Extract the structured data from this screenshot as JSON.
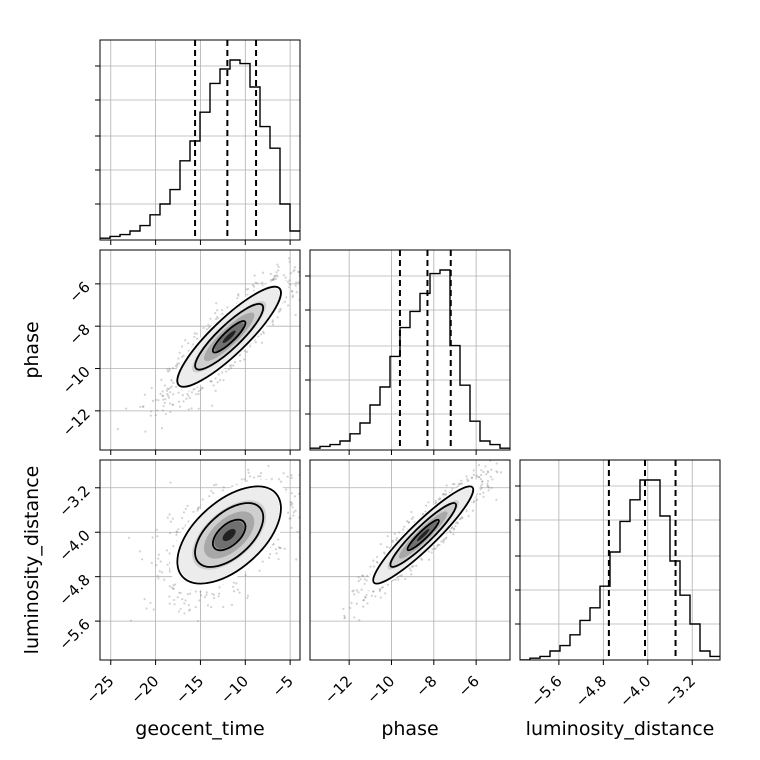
{
  "chart_data": {
    "type": "corner",
    "parameters": [
      "geocent_time",
      "phase",
      "luminosity_distance"
    ],
    "axis_labels": {
      "geocent_time": "geocent_time",
      "phase": "phase",
      "luminosity_distance": "luminosity_distance"
    },
    "ranges": {
      "geocent_time": [
        -26.2,
        -3.9
      ],
      "phase": [
        -13.85,
        -4.4
      ],
      "luminosity_distance": [
        -6.3,
        -2.7
      ]
    },
    "ticks": {
      "geocent_time": [
        -25,
        -20,
        -15,
        -10,
        -5
      ],
      "phase": [
        -12,
        -10,
        -8,
        -6
      ],
      "luminosity_distance": [
        -5.6,
        -4.8,
        -4.0,
        -3.2
      ]
    },
    "tick_labels": {
      "geocent_time": [
        "−25",
        "−20",
        "−15",
        "−10",
        "−5"
      ],
      "phase": [
        "−12",
        "−10",
        "−8",
        "−6"
      ],
      "luminosity_distance": [
        "−5.6",
        "−4.8",
        "−4.0",
        "−3.2"
      ]
    },
    "quantiles": {
      "geocent_time": [
        -15.6,
        -12.0,
        -8.8
      ],
      "phase": [
        -9.6,
        -8.3,
        -7.2
      ],
      "luminosity_distance": [
        -4.7,
        -4.05,
        -3.5
      ]
    },
    "histograms": {
      "geocent_time": {
        "edges": [
          -26.2,
          -25.085,
          -23.97,
          -22.855,
          -21.74,
          -20.625,
          -19.51,
          -18.395,
          -17.28,
          -16.165,
          -15.05,
          -13.935,
          -12.82,
          -11.705,
          -10.59,
          -9.475,
          -8.36,
          -7.245,
          -6.13,
          -5.015,
          -3.9
        ],
        "counts": [
          0.01,
          0.02,
          0.03,
          0.05,
          0.08,
          0.14,
          0.2,
          0.28,
          0.44,
          0.55,
          0.71,
          0.87,
          0.95,
          1.0,
          0.98,
          0.85,
          0.63,
          0.51,
          0.2,
          0.05
        ]
      },
      "phase": {
        "edges": [
          -13.85,
          -13.3775,
          -12.905,
          -12.4325,
          -11.96,
          -11.4875,
          -11.015,
          -10.5425,
          -10.07,
          -9.5975,
          -9.125,
          -8.6525,
          -8.18,
          -7.7075,
          -7.235,
          -6.7625,
          -6.29,
          -5.8175,
          -5.345,
          -4.8725,
          -4.4
        ],
        "counts": [
          0.01,
          0.02,
          0.03,
          0.05,
          0.09,
          0.15,
          0.25,
          0.35,
          0.52,
          0.68,
          0.77,
          0.87,
          0.98,
          1.0,
          0.58,
          0.36,
          0.16,
          0.05,
          0.03,
          0.01
        ]
      },
      "luminosity_distance": {
        "edges": [
          -6.3,
          -6.12,
          -5.94,
          -5.76,
          -5.58,
          -5.4,
          -5.22,
          -5.04,
          -4.86,
          -4.68,
          -4.5,
          -4.32,
          -4.14,
          -3.96,
          -3.78,
          -3.6,
          -3.42,
          -3.24,
          -3.06,
          -2.88,
          -2.7
        ],
        "counts": [
          0.0,
          0.01,
          0.02,
          0.05,
          0.08,
          0.14,
          0.22,
          0.29,
          0.41,
          0.6,
          0.77,
          0.89,
          1.0,
          1.0,
          0.8,
          0.55,
          0.36,
          0.2,
          0.05,
          0.02
        ]
      }
    },
    "pairs": [
      {
        "x": "geocent_time",
        "y": "phase",
        "mean": [
          -11.8,
          -8.5
        ],
        "std": [
          3.3,
          1.35
        ],
        "corr": 0.88
      },
      {
        "x": "geocent_time",
        "y": "luminosity_distance",
        "mean": [
          -11.8,
          -4.05
        ],
        "std": [
          3.3,
          0.5
        ],
        "corr": 0.55
      },
      {
        "x": "phase",
        "y": "luminosity_distance",
        "mean": [
          -8.5,
          -4.05
        ],
        "std": [
          1.35,
          0.5
        ],
        "corr": 0.93
      }
    ],
    "grid": true,
    "colors": {
      "line": "#000000",
      "grid": "#b0b0b0",
      "points": "#7f7f7f"
    }
  }
}
